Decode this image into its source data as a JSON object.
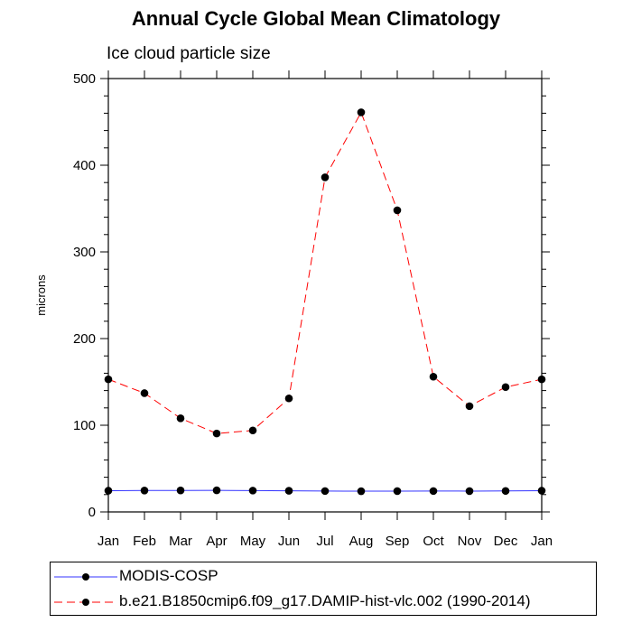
{
  "chart_data": {
    "type": "line",
    "title": "Annual Cycle Global Mean Climatology",
    "subtitle": "Ice cloud particle size",
    "xlabel": "",
    "ylabel": "microns",
    "categories": [
      "Jan",
      "Feb",
      "Mar",
      "Apr",
      "May",
      "Jun",
      "Jul",
      "Aug",
      "Sep",
      "Oct",
      "Nov",
      "Dec",
      "Jan"
    ],
    "ylim": [
      0,
      500
    ],
    "yticks": [
      0,
      100,
      200,
      300,
      400,
      500
    ],
    "ytick_labels": [
      "0",
      "100",
      "200",
      "300",
      "400",
      "500"
    ],
    "legend_position": "bottom",
    "series": [
      {
        "name": "MODIS-COSP",
        "color": "#3333ff",
        "line_style": "solid",
        "marker": "filled-circle",
        "values": [
          24.5,
          24.7,
          24.8,
          24.9,
          24.6,
          24.4,
          24.1,
          23.9,
          24.0,
          24.1,
          24.0,
          24.2,
          24.5
        ]
      },
      {
        "name": "b.e21.B1850cmip6.f09_g17.DAMIP-hist-vlc.002 (1990-2014)",
        "color": "#ff0000",
        "line_style": "dashed",
        "marker": "filled-circle",
        "values": [
          153,
          137,
          108,
          90.5,
          94,
          131,
          386,
          461,
          348,
          156,
          122,
          144,
          153
        ]
      }
    ]
  }
}
